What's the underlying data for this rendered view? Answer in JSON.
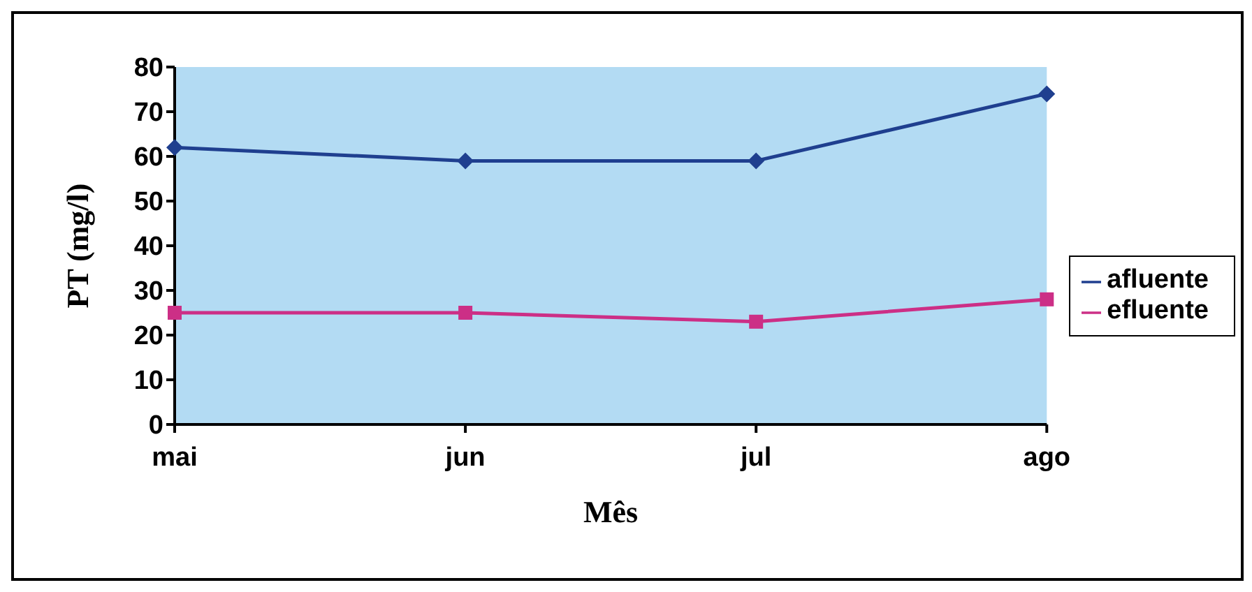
{
  "chart_data": {
    "type": "line",
    "xlabel": "Mês",
    "ylabel": "PT (mg/l)",
    "categories": [
      "mai",
      "jun",
      "jul",
      "ago"
    ],
    "series": [
      {
        "name": "afluente",
        "color": "#1f3f8f",
        "marker": "diamond",
        "values": [
          62,
          59,
          59,
          74
        ]
      },
      {
        "name": "efluente",
        "color": "#cc2f86",
        "marker": "square",
        "values": [
          25,
          25,
          23,
          28
        ]
      }
    ],
    "ylim": [
      0,
      80
    ],
    "yticks": [
      0,
      10,
      20,
      30,
      40,
      50,
      60,
      70,
      80
    ],
    "grid": false,
    "legend": "right",
    "line_style": "solid"
  }
}
